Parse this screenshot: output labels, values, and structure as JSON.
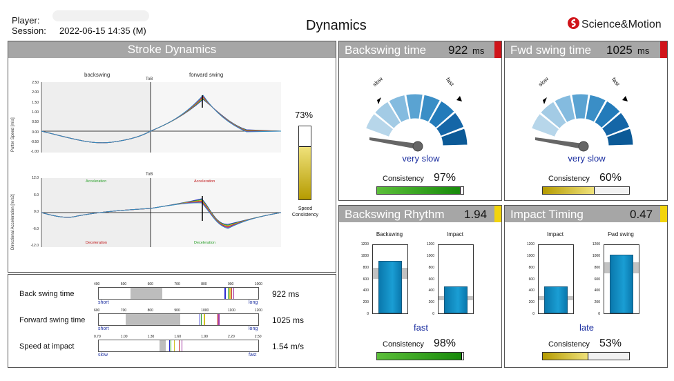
{
  "header": {
    "player_label": "Player:",
    "session_label": "Session:",
    "session_value": "2022-06-15 14:35 (M)",
    "title": "Dynamics",
    "brand": "Science&Motion"
  },
  "stroke": {
    "title": "Stroke Dynamics",
    "backswing": "backswing",
    "forward_swing": "forward swing",
    "tob": "ToB",
    "speed_axis": "Putter Speed [m/s]",
    "speed_ticks": [
      "2.50",
      "2.00",
      "1.50",
      "1.00",
      "0.50",
      "0.00",
      "-0.50",
      "-1.00"
    ],
    "accel_axis": "Directional Acceleration [m/s2]",
    "accel_ticks": [
      "12.0",
      "6.0",
      "0.0",
      "-6.0",
      "-12.0"
    ],
    "acceleration": "Acceleration",
    "deceleration": "Deceleration",
    "consistency_value": "73%",
    "consistency_fraction": 0.73,
    "consistency_label_1": "Speed",
    "consistency_label_2": "Consistency"
  },
  "metrics": {
    "rows": [
      {
        "label": "Back swing time",
        "value": "922 ms",
        "ticks": [
          "400",
          "500",
          "600",
          "700",
          "800",
          "900",
          "1000"
        ],
        "left": "short",
        "right": "long"
      },
      {
        "label": "Forward swing time",
        "value": "1025 ms",
        "ticks": [
          "600",
          "700",
          "800",
          "900",
          "1000",
          "1100",
          "1200"
        ],
        "left": "short",
        "right": "long"
      },
      {
        "label": "Speed at impact",
        "value": "1.54 m/s",
        "ticks": [
          "0.70",
          "1.00",
          "1.30",
          "1.60",
          "1.90",
          "2.20",
          "2.50"
        ],
        "left": "slow",
        "right": "fast"
      }
    ]
  },
  "backswing_time": {
    "title": "Backswing time",
    "value": "922",
    "unit": "ms",
    "slow": "slow",
    "fast": "fast",
    "verdict": "very slow",
    "consistency_label": "Consistency",
    "consistency": "97%",
    "consistency_fraction": 0.97,
    "flag_color": "#d0141a"
  },
  "fwd_swing_time": {
    "title": "Fwd swing time",
    "value": "1025",
    "unit": "ms",
    "slow": "slow",
    "fast": "fast",
    "verdict": "very slow",
    "consistency_label": "Consistency",
    "consistency": "60%",
    "consistency_fraction": 0.6,
    "flag_color": "#d0141a"
  },
  "backswing_rhythm": {
    "title": "Backswing Rhythm",
    "value": "1.94",
    "bar1_label": "Backswing",
    "bar2_label": "Impact",
    "ticks": [
      "1200",
      "1000",
      "800",
      "600",
      "400",
      "200",
      "0"
    ],
    "bar1_value": 922,
    "bar2_value": 475,
    "verdict": "fast",
    "consistency_label": "Consistency",
    "consistency": "98%",
    "consistency_fraction": 0.98,
    "flag_color": "#f2d40c"
  },
  "impact_timing": {
    "title": "Impact Timing",
    "value": "0.47",
    "bar1_label": "Impact",
    "bar2_label": "Fwd swing",
    "ticks": [
      "1200",
      "1000",
      "800",
      "600",
      "400",
      "200",
      "0"
    ],
    "bar1_value": 475,
    "bar2_value": 1025,
    "verdict": "late",
    "consistency_label": "Consistency",
    "consistency": "53%",
    "consistency_fraction": 0.53,
    "flag_color": "#f2d40c"
  }
}
